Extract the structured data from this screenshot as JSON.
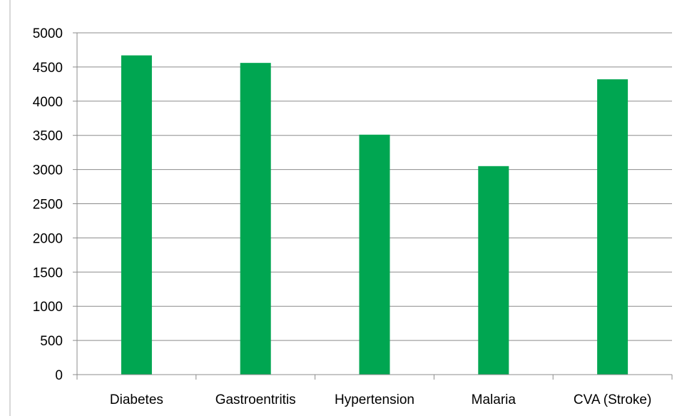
{
  "chart_data": {
    "type": "bar",
    "title": "",
    "xlabel": "",
    "ylabel": "",
    "categories": [
      "Diabetes",
      "Gastroentritis",
      "Hypertension",
      "Malaria",
      "CVA (Stroke)"
    ],
    "values": [
      4670,
      4560,
      3510,
      3050,
      4320
    ],
    "ylim": [
      0,
      5000
    ],
    "yticks": [
      0,
      500,
      1000,
      1500,
      2000,
      2500,
      3000,
      3500,
      4000,
      4500,
      5000
    ],
    "grid": true,
    "legend": "none",
    "bar_color": "#00a651"
  }
}
